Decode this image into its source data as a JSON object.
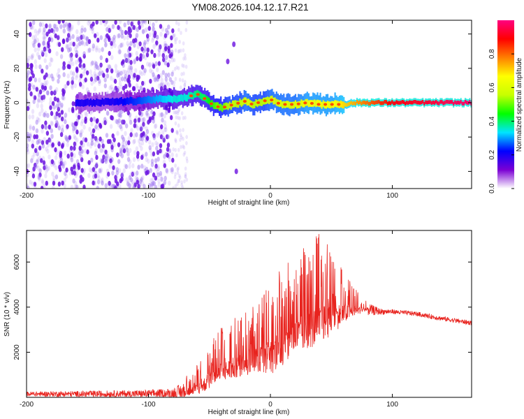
{
  "title": "YM08.2026.104.12.17.R21",
  "chart_data": [
    {
      "type": "heatmap",
      "title": "YM08.2026.104.12.17.R21",
      "xlabel": "Height of straight line (km)",
      "ylabel": "Frequency (Hz)",
      "xlim": [
        -200,
        165
      ],
      "ylim": [
        -50,
        48
      ],
      "xticks": [
        -200,
        -100,
        0,
        100
      ],
      "xtick_labels": [
        "-200",
        "-100",
        "0",
        "100"
      ],
      "yticks": [
        -40,
        -20,
        0,
        20,
        40
      ],
      "ytick_labels": [
        "-40",
        "-20",
        "0",
        "20",
        "40"
      ],
      "noise_region_x": [
        -200,
        -80
      ],
      "ridge": {
        "x": [
          -150,
          -130,
          -110,
          -95,
          -80,
          -70,
          -60,
          -55,
          -50,
          -45,
          -40,
          -35,
          -30,
          -25,
          -20,
          -15,
          -10,
          -5,
          0,
          5,
          10,
          20,
          30,
          40,
          50,
          60,
          70,
          80,
          90,
          100,
          120,
          140,
          165
        ],
        "freq_hz": [
          0,
          0.5,
          1,
          2,
          2,
          3,
          5,
          3,
          0,
          -2,
          -3,
          -2,
          -1,
          0,
          1,
          -1,
          0,
          1,
          2,
          0,
          -1,
          -1,
          0,
          -1,
          -1,
          -1,
          0,
          0,
          0,
          0,
          0,
          0,
          0
        ],
        "amplitude": [
          0.2,
          0.2,
          0.25,
          0.3,
          0.35,
          0.35,
          0.4,
          0.4,
          0.45,
          0.5,
          0.5,
          0.55,
          0.55,
          0.55,
          0.6,
          0.55,
          0.55,
          0.55,
          0.6,
          0.6,
          0.6,
          0.6,
          0.65,
          0.65,
          0.65,
          0.7,
          0.75,
          0.8,
          0.85,
          0.9,
          0.92,
          0.95,
          0.98
        ]
      },
      "stray_points": [
        [
          -30,
          34
        ],
        [
          -35,
          24
        ],
        [
          -28,
          -40
        ]
      ],
      "colorbar": {
        "label": "Normalized spectral amplitude",
        "range": [
          0,
          1
        ],
        "ticks": [
          0.0,
          0.2,
          0.4,
          0.6,
          0.8
        ],
        "tick_labels": [
          "0.0",
          "0.2",
          "0.4",
          "0.6",
          "0.8"
        ],
        "colors": [
          "#ffffff",
          "#7b00d4",
          "#0000ff",
          "#00e5ff",
          "#00ff00",
          "#c8ff00",
          "#ffff00",
          "#ff7f00",
          "#ff0000",
          "#ff0080"
        ]
      }
    },
    {
      "type": "line",
      "xlabel": "Height of straight line (km)",
      "ylabel": "SNR (10 * v/v)",
      "xlim": [
        -200,
        165
      ],
      "ylim": [
        0,
        7400
      ],
      "xticks": [
        -200,
        -100,
        0,
        100
      ],
      "xtick_labels": [
        "-200",
        "-100",
        "0",
        "100"
      ],
      "yticks": [
        2000,
        4000,
        6000
      ],
      "ytick_labels": [
        "2000",
        "4000",
        "6000"
      ],
      "series": [
        {
          "name": "SNR",
          "color": "#e8231e",
          "envelope_x": [
            -200,
            -150,
            -100,
            -80,
            -70,
            -60,
            -50,
            -40,
            -30,
            -20,
            -10,
            0,
            10,
            20,
            30,
            40,
            50,
            60,
            70,
            80,
            90,
            100,
            120,
            140,
            165
          ],
          "baseline": [
            150,
            150,
            160,
            180,
            250,
            400,
            800,
            1200,
            1400,
            1600,
            1800,
            1900,
            2300,
            2800,
            3100,
            3400,
            3600,
            3800,
            3900,
            3900,
            3800,
            3800,
            3700,
            3500,
            3300
          ],
          "peaks": [
            300,
            350,
            400,
            500,
            900,
            1500,
            2500,
            3200,
            3500,
            3900,
            4300,
            5200,
            5800,
            6200,
            6900,
            7300,
            6800,
            5800,
            4800,
            4300,
            4000,
            3950,
            3850,
            3650,
            3450
          ]
        }
      ]
    }
  ]
}
